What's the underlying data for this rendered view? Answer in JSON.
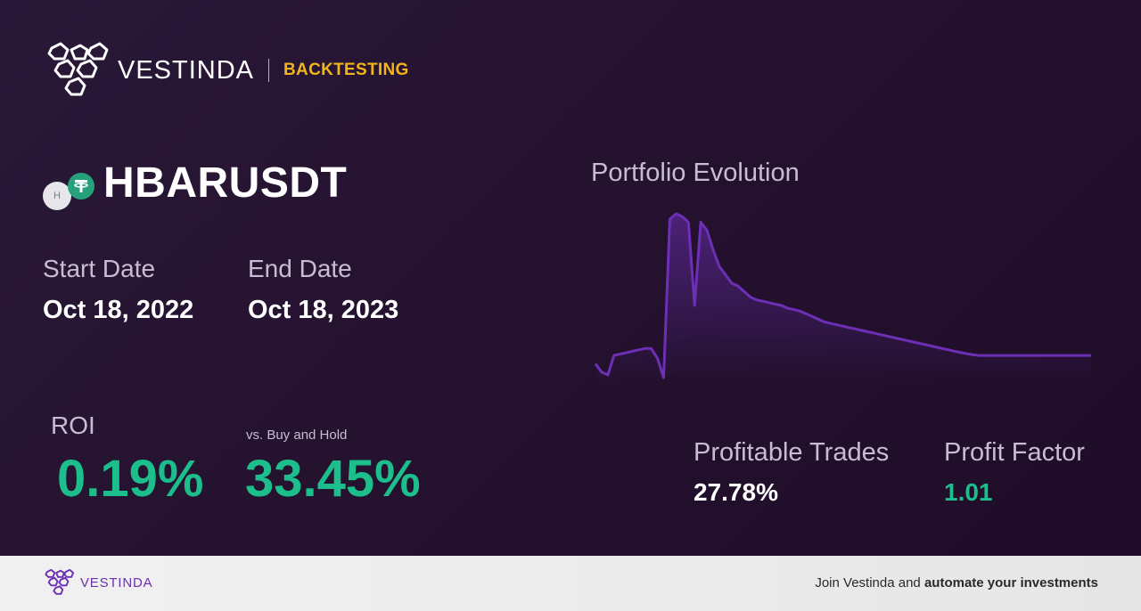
{
  "brand": {
    "name": "VESTINDA",
    "tag": "BACKTESTING"
  },
  "pair": {
    "symbol": "HBARUSDT",
    "base_coin_letter": "H",
    "quote_coin_icon": "tether-icon"
  },
  "dates": {
    "start_label": "Start Date",
    "start_value": "Oct 18, 2022",
    "end_label": "End Date",
    "end_value": "Oct 18, 2023"
  },
  "roi": {
    "label": "ROI",
    "value": "0.19%",
    "vs_label": "vs. Buy and Hold",
    "vs_value": "33.45%"
  },
  "chart_data": {
    "type": "area",
    "title": "Portfolio Evolution",
    "xlabel": "",
    "ylabel": "",
    "grid": false,
    "legend": "none",
    "x": [
      0,
      1,
      2,
      3,
      4,
      5,
      6,
      7,
      8,
      9,
      10,
      11,
      12,
      13,
      14,
      15,
      16,
      17,
      18,
      19,
      20,
      21,
      22,
      23,
      24,
      25,
      26,
      27,
      28,
      29,
      30,
      31,
      32,
      33,
      34,
      35,
      36,
      37,
      38,
      39,
      40,
      41,
      42,
      43,
      44,
      45,
      46,
      47,
      48,
      49,
      50,
      51,
      52,
      53,
      54,
      55,
      56,
      57,
      58,
      59,
      60,
      61,
      62,
      63,
      64,
      65,
      66,
      67,
      68,
      69,
      70,
      71,
      72,
      73,
      74,
      75,
      76,
      77,
      78,
      79,
      80
    ],
    "values": [
      0.93,
      0.9,
      0.89,
      0.96,
      0.965,
      0.97,
      0.975,
      0.98,
      0.985,
      0.985,
      0.95,
      0.88,
      1.45,
      1.47,
      1.46,
      1.44,
      1.14,
      1.44,
      1.41,
      1.34,
      1.28,
      1.25,
      1.22,
      1.21,
      1.19,
      1.17,
      1.16,
      1.155,
      1.15,
      1.145,
      1.14,
      1.13,
      1.125,
      1.12,
      1.11,
      1.1,
      1.09,
      1.08,
      1.075,
      1.07,
      1.065,
      1.06,
      1.055,
      1.05,
      1.045,
      1.04,
      1.035,
      1.03,
      1.025,
      1.02,
      1.015,
      1.01,
      1.005,
      1.0,
      0.995,
      0.99,
      0.985,
      0.98,
      0.975,
      0.97,
      0.966,
      0.962,
      0.96,
      0.96,
      0.96,
      0.96,
      0.96,
      0.96,
      0.96,
      0.96,
      0.96,
      0.96,
      0.96,
      0.96,
      0.96,
      0.96,
      0.96,
      0.96,
      0.96,
      0.96,
      0.96
    ],
    "color": "#6c2fb5"
  },
  "stats": {
    "trades_label": "Profitable Trades",
    "trades_value": "27.78%",
    "pf_label": "Profit Factor",
    "pf_value": "1.01"
  },
  "footer": {
    "brand": "VESTINDA",
    "cta_prefix": "Join Vestinda and ",
    "cta_bold": "automate your investments"
  },
  "colors": {
    "accent_green": "#1cbf8b",
    "accent_yellow": "#f2b519",
    "accent_purple": "#6c2fb5",
    "background": "#24122f"
  }
}
